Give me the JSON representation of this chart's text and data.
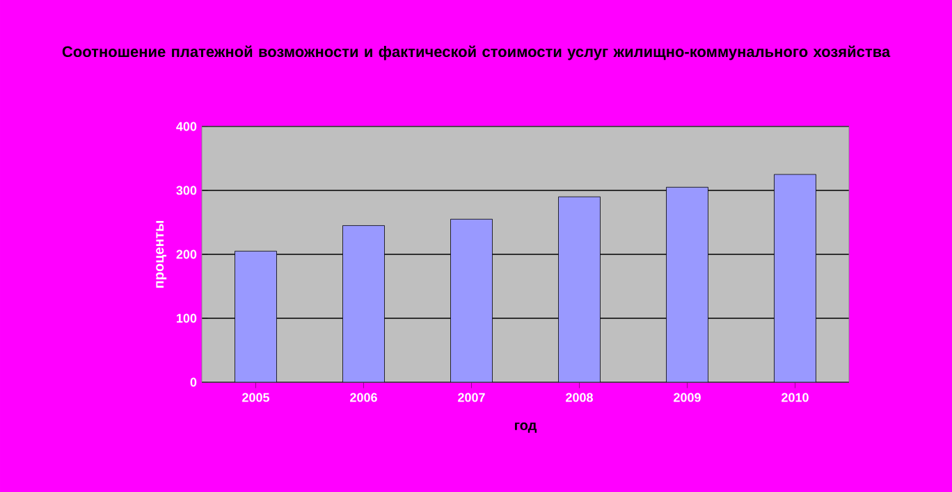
{
  "chart_data": {
    "type": "bar",
    "title": "Соотношение платежной возможности и фактической стоимости услуг жилищно-коммунального хозяйства",
    "xlabel": "год",
    "ylabel": "проценты",
    "categories": [
      "2005",
      "2006",
      "2007",
      "2008",
      "2009",
      "2010"
    ],
    "values": [
      205,
      245,
      255,
      290,
      305,
      325
    ],
    "color": "#9999ff",
    "ylim": [
      0,
      400
    ],
    "yticks": [
      0,
      100,
      200,
      300,
      400
    ],
    "grid": "y"
  }
}
